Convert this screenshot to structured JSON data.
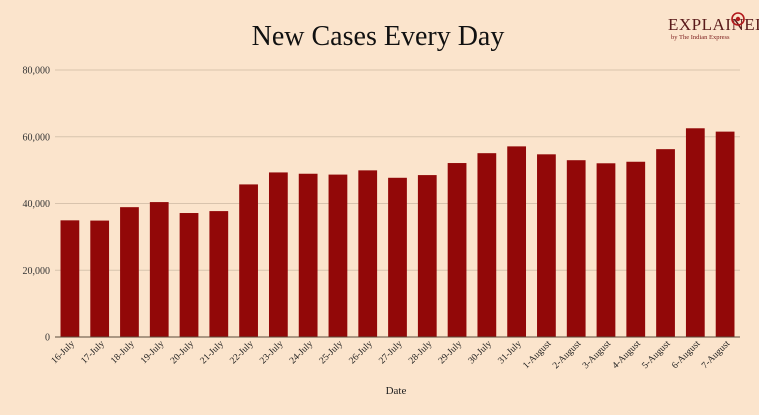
{
  "brand": {
    "name": "EXPLAINED",
    "tagline": "by The Indian Express",
    "accent": "#b3191c"
  },
  "chart_data": {
    "type": "bar",
    "title": "New Cases Every Day",
    "xlabel": "Date",
    "ylabel": "",
    "ylim": [
      0,
      80000
    ],
    "yticks": [
      0,
      20000,
      40000,
      60000,
      80000
    ],
    "ytick_labels": [
      "0",
      "20,000",
      "40,000",
      "60,000",
      "80,000"
    ],
    "bar_color": "#920808",
    "grid": true,
    "categories": [
      "16-July",
      "17-July",
      "18-July",
      "19-July",
      "20-July",
      "21-July",
      "22-July",
      "23-July",
      "24-July",
      "25-July",
      "26-July",
      "27-July",
      "28-July",
      "29-July",
      "30-July",
      "31-July",
      "1-August",
      "2-August",
      "3-August",
      "4-August",
      "5-August",
      "6-August",
      "7-August"
    ],
    "values": [
      34956,
      34884,
      38902,
      40425,
      37148,
      37724,
      45720,
      49310,
      48916,
      48661,
      49931,
      47704,
      48513,
      52123,
      55079,
      57118,
      54735,
      52972,
      52050,
      52509,
      56282,
      62538,
      61537
    ]
  }
}
